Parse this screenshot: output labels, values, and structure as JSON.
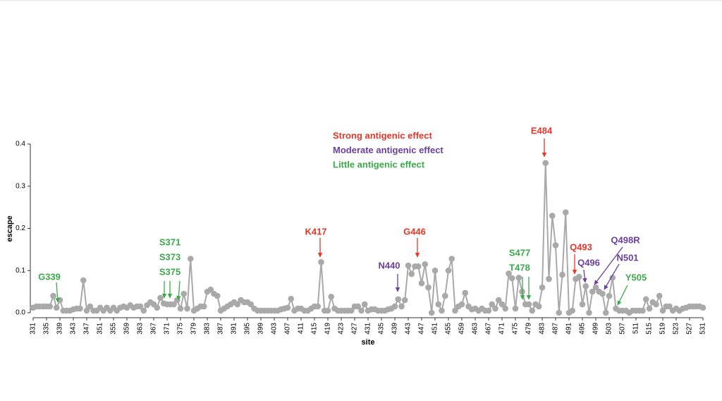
{
  "chart_data": {
    "type": "line",
    "xlabel": "site",
    "ylabel": "escape",
    "xlim": [
      331,
      531
    ],
    "ylim": [
      0,
      0.4
    ],
    "xticks": [
      331,
      335,
      339,
      343,
      347,
      351,
      355,
      359,
      363,
      367,
      371,
      375,
      379,
      383,
      387,
      391,
      395,
      399,
      403,
      407,
      411,
      415,
      419,
      423,
      427,
      431,
      435,
      439,
      443,
      447,
      451,
      455,
      459,
      463,
      467,
      471,
      475,
      479,
      483,
      487,
      491,
      495,
      499,
      503,
      507,
      511,
      515,
      519,
      523,
      527,
      531
    ],
    "yticks": [
      {
        "value": 0,
        "label": "0.0"
      },
      0.1,
      0.2,
      0.3,
      0.4
    ],
    "color": "#a9a9a9",
    "x": [
      331,
      332,
      333,
      334,
      335,
      336,
      337,
      338,
      339,
      340,
      341,
      342,
      343,
      344,
      345,
      346,
      347,
      348,
      349,
      350,
      351,
      352,
      353,
      354,
      355,
      356,
      357,
      358,
      359,
      360,
      361,
      362,
      363,
      364,
      365,
      366,
      367,
      368,
      369,
      370,
      371,
      372,
      373,
      374,
      375,
      376,
      377,
      378,
      379,
      380,
      381,
      382,
      383,
      384,
      385,
      386,
      387,
      388,
      389,
      390,
      391,
      392,
      393,
      394,
      395,
      396,
      397,
      398,
      399,
      400,
      401,
      402,
      403,
      404,
      405,
      406,
      407,
      408,
      409,
      410,
      411,
      412,
      413,
      414,
      415,
      416,
      417,
      418,
      419,
      420,
      421,
      422,
      423,
      424,
      425,
      426,
      427,
      428,
      429,
      430,
      431,
      432,
      433,
      434,
      435,
      436,
      437,
      438,
      439,
      440,
      441,
      442,
      443,
      444,
      445,
      446,
      447,
      448,
      449,
      450,
      451,
      452,
      453,
      454,
      455,
      456,
      457,
      458,
      459,
      460,
      461,
      462,
      463,
      464,
      465,
      466,
      467,
      468,
      469,
      470,
      471,
      472,
      473,
      474,
      475,
      476,
      477,
      478,
      479,
      480,
      481,
      482,
      483,
      484,
      485,
      486,
      487,
      488,
      489,
      490,
      491,
      492,
      493,
      494,
      495,
      496,
      497,
      498,
      499,
      500,
      501,
      502,
      503,
      504,
      505,
      506,
      507,
      508,
      509,
      510,
      511,
      512,
      513,
      514,
      515,
      516,
      517,
      518,
      519,
      520,
      521,
      522,
      523,
      524,
      525,
      526,
      527,
      528,
      529,
      530,
      531
    ],
    "values": [
      0.012,
      0.015,
      0.015,
      0.015,
      0.015,
      0.015,
      0.04,
      0.012,
      0.03,
      0.005,
      0.005,
      0.005,
      0.008,
      0.01,
      0.01,
      0.077,
      0.005,
      0.015,
      0.005,
      0.005,
      0.012,
      0.005,
      0.012,
      0.005,
      0.012,
      0.005,
      0.012,
      0.015,
      0.012,
      0.018,
      0.012,
      0.015,
      0.015,
      0.005,
      0.018,
      0.025,
      0.02,
      0.012,
      0.035,
      0.022,
      0.02,
      0.02,
      0.02,
      0.03,
      0.01,
      0.045,
      0.01,
      0.128,
      0.005,
      0.01,
      0.015,
      0.015,
      0.05,
      0.055,
      0.045,
      0.04,
      0.005,
      0.01,
      0.015,
      0.02,
      0.025,
      0.02,
      0.03,
      0.025,
      0.025,
      0.02,
      0.01,
      0.005,
      0.005,
      0.005,
      0.005,
      0.005,
      0.005,
      0.005,
      0.008,
      0.01,
      0.012,
      0.033,
      0.005,
      0.01,
      0.01,
      0.005,
      0.005,
      0.01,
      0.015,
      0.015,
      0.12,
      0.005,
      0.005,
      0.038,
      0.01,
      0.005,
      0.005,
      0.005,
      0.005,
      0.005,
      0.015,
      0.015,
      0.005,
      0.02,
      0.005,
      0.008,
      0.008,
      0.005,
      0.005,
      0.005,
      0.008,
      0.01,
      0.015,
      0.032,
      0.015,
      0.03,
      0.112,
      0.092,
      0.11,
      0.11,
      0.07,
      0.115,
      0.06,
      0.0,
      0.1,
      0.02,
      0.005,
      0.04,
      0.1,
      0.128,
      0.005,
      0.015,
      0.02,
      0.047,
      0.015,
      0.008,
      0.01,
      0.005,
      0.01,
      0.005,
      0.005,
      0.02,
      0.01,
      0.03,
      0.02,
      0.01,
      0.093,
      0.082,
      0.01,
      0.083,
      0.05,
      0.02,
      0.02,
      0.005,
      0.02,
      0.015,
      0.06,
      0.355,
      0.08,
      0.23,
      0.16,
      0.0,
      0.09,
      0.238,
      0.0,
      0.005,
      0.08,
      0.085,
      0.02,
      0.063,
      0.0,
      0.05,
      0.06,
      0.05,
      0.045,
      0.0,
      0.04,
      0.083,
      0.01,
      0.005,
      0.005,
      0.005,
      0.0,
      0.005,
      0.005,
      0.005,
      0.005,
      0.032,
      0.01,
      0.025,
      0.02,
      0.04,
      0.005,
      0.015,
      0.015,
      0.005,
      0.01,
      0.005,
      0.01,
      0.012,
      0.015,
      0.015,
      0.015,
      0.015,
      0.012
    ],
    "legend": [
      {
        "text": "Strong antigenic effect",
        "color": "#e5372a"
      },
      {
        "text": "Moderate antigenic effect",
        "color": "#6b3fa0"
      },
      {
        "text": "Little antigenic effect",
        "color": "#3aaa4a"
      }
    ],
    "annotations": [
      {
        "text": "G339",
        "color": "#3aaa4a"
      },
      {
        "text": "S371",
        "color": "#3aaa4a"
      },
      {
        "text": "S373",
        "color": "#3aaa4a"
      },
      {
        "text": "S375",
        "color": "#3aaa4a"
      },
      {
        "text": "K417",
        "color": "#e5372a"
      },
      {
        "text": "N440",
        "color": "#6b3fa0"
      },
      {
        "text": "G446",
        "color": "#e5372a"
      },
      {
        "text": "S477",
        "color": "#3aaa4a"
      },
      {
        "text": "T478",
        "color": "#3aaa4a"
      },
      {
        "text": "E484",
        "color": "#e5372a"
      },
      {
        "text": "Q493",
        "color": "#e5372a"
      },
      {
        "text": "Q496",
        "color": "#6b3fa0"
      },
      {
        "text": "Q498R",
        "color": "#6b3fa0"
      },
      {
        "text": "N501",
        "color": "#6b3fa0"
      },
      {
        "text": "Y505",
        "color": "#3aaa4a"
      }
    ]
  }
}
